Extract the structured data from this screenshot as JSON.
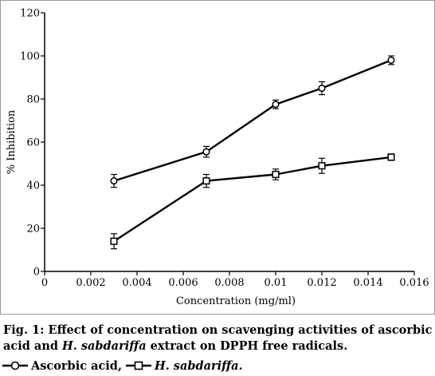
{
  "chart_data": {
    "type": "line",
    "title": "",
    "xlabel": "Concentration (mg/ml)",
    "ylabel": "% Inhibition",
    "xlim": [
      0,
      0.016
    ],
    "ylim": [
      0,
      120
    ],
    "xticks": [
      0,
      0.002,
      0.004,
      0.006,
      0.008,
      0.01,
      0.012,
      0.014,
      0.016
    ],
    "xtick_labels": [
      "0",
      "0.002",
      "0.004",
      "0.006",
      "0.008",
      "0.01",
      "0.012",
      "0.014",
      "0.016"
    ],
    "yticks": [
      0,
      20,
      40,
      60,
      80,
      100,
      120
    ],
    "ytick_labels": [
      "0",
      "20",
      "40",
      "60",
      "80",
      "100",
      "120"
    ],
    "grid": false,
    "series": [
      {
        "name": "Ascorbic acid",
        "marker": "circle",
        "x": [
          0.003,
          0.007,
          0.01,
          0.012,
          0.015
        ],
        "y": [
          42,
          55.5,
          77.5,
          85,
          98
        ],
        "error": [
          3,
          2.5,
          2,
          3,
          2
        ]
      },
      {
        "name": "H. sabdariffa",
        "marker": "square",
        "x": [
          0.003,
          0.007,
          0.01,
          0.012,
          0.015
        ],
        "y": [
          14,
          42,
          45,
          49,
          53
        ],
        "error": [
          3.5,
          3,
          2.5,
          3.5,
          1.5
        ]
      }
    ]
  },
  "caption": {
    "prefix": "Fig. 1: Effect of concentration on scavenging activities of ascorbic acid and ",
    "species": "H. sabdariffa",
    "suffix": " extract on DPPH free radicals."
  },
  "legend": {
    "item1_label": "Ascorbic acid,",
    "item2_label": "H. sabdariffa."
  }
}
